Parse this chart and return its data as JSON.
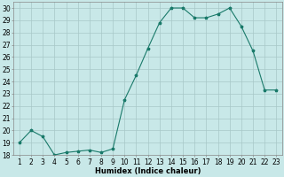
{
  "x": [
    1,
    2,
    3,
    4,
    5,
    6,
    7,
    8,
    9,
    10,
    11,
    12,
    13,
    14,
    15,
    16,
    17,
    18,
    19,
    20,
    21,
    22,
    23
  ],
  "y": [
    19,
    20,
    19.5,
    18,
    18.2,
    18.3,
    18.4,
    18.2,
    18.5,
    22.5,
    24.5,
    26.7,
    28.8,
    30,
    30,
    29.2,
    29.2,
    29.5,
    30,
    28.5,
    26.5,
    23.3,
    23.3
  ],
  "line_color": "#1a7a6a",
  "marker_color": "#1a7a6a",
  "bg_color": "#c8e8e8",
  "grid_color_major": "#a8c8c8",
  "xlabel": "Humidex (Indice chaleur)",
  "ylim": [
    18,
    30.5
  ],
  "xlim": [
    0.5,
    23.5
  ],
  "yticks": [
    18,
    19,
    20,
    21,
    22,
    23,
    24,
    25,
    26,
    27,
    28,
    29,
    30
  ],
  "xticks": [
    1,
    2,
    3,
    4,
    5,
    6,
    7,
    8,
    9,
    10,
    11,
    12,
    13,
    14,
    15,
    16,
    17,
    18,
    19,
    20,
    21,
    22,
    23
  ],
  "label_fontsize": 6,
  "tick_fontsize": 5.5
}
